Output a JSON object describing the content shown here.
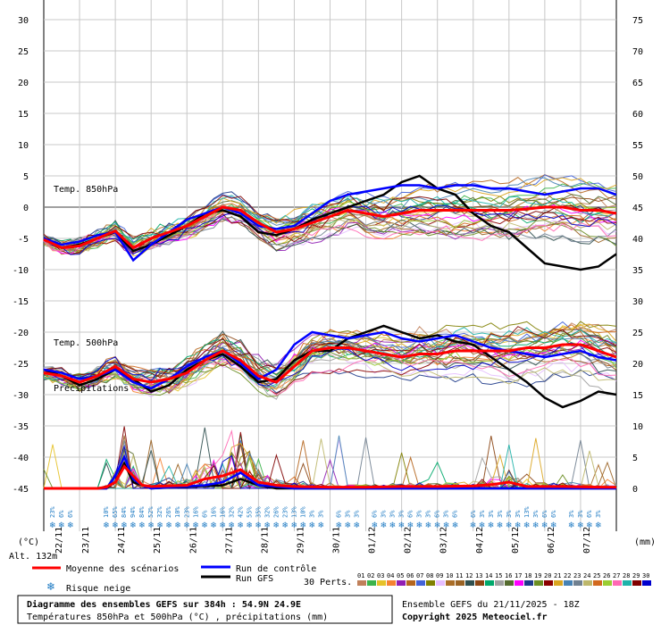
{
  "chart_data": {
    "type": "line",
    "title": "Diagramme des ensembles GEFS sur 384h : 54.9N 24.9E",
    "subtitle": "Températures 850hPa et 500hPa (°C) , précipitations (mm)",
    "run_info": "Ensemble GEFS du 21/11/2025 - 18Z",
    "copyright": "Copyright 2025 Meteociel.fr",
    "altitude": "Alt. 132m",
    "left_unit": "(°C)",
    "right_unit": "(mm)",
    "left_ticks": [
      30,
      25,
      20,
      15,
      10,
      5,
      0,
      -5,
      -10,
      -15,
      -20,
      -25,
      -30,
      -35,
      -40,
      -45
    ],
    "right_ticks": [
      75,
      70,
      65,
      60,
      55,
      50,
      45,
      40,
      35,
      30,
      25,
      20,
      15,
      10,
      5,
      0
    ],
    "ylim_temp": [
      -45,
      30
    ],
    "ylim_precip": [
      0,
      75
    ],
    "x_dates": [
      "22/11",
      "23/11",
      "24/11",
      "25/11",
      "26/11",
      "27/11",
      "28/11",
      "29/11",
      "30/11",
      "01/12",
      "02/12",
      "03/12",
      "04/12",
      "05/12",
      "06/12",
      "07/12"
    ],
    "xlim_hours": [
      0,
      384
    ],
    "annotations": {
      "t850": "Temp. 850hPa",
      "t500": "Temp. 500hPa",
      "precip": "Précipitations"
    },
    "snow_risk_pct": [
      {
        "h": 6,
        "v": "23%"
      },
      {
        "h": 12,
        "v": "6%"
      },
      {
        "h": 18,
        "v": "6%"
      },
      {
        "h": 42,
        "v": "10%"
      },
      {
        "h": 48,
        "v": "65%"
      },
      {
        "h": 54,
        "v": "84%"
      },
      {
        "h": 60,
        "v": "94%"
      },
      {
        "h": 66,
        "v": "84%"
      },
      {
        "h": 72,
        "v": "52%"
      },
      {
        "h": 78,
        "v": "32%"
      },
      {
        "h": 84,
        "v": "26%"
      },
      {
        "h": 90,
        "v": "10%"
      },
      {
        "h": 96,
        "v": "23%"
      },
      {
        "h": 102,
        "v": "16%"
      },
      {
        "h": 108,
        "v": "6%"
      },
      {
        "h": 114,
        "v": "16%"
      },
      {
        "h": 120,
        "v": "16%"
      },
      {
        "h": 126,
        "v": "32%"
      },
      {
        "h": 132,
        "v": "42%"
      },
      {
        "h": 138,
        "v": "55%"
      },
      {
        "h": 144,
        "v": "35%"
      },
      {
        "h": 150,
        "v": "32%"
      },
      {
        "h": 156,
        "v": "26%"
      },
      {
        "h": 162,
        "v": "23%"
      },
      {
        "h": 168,
        "v": "13%"
      },
      {
        "h": 174,
        "v": "10%"
      },
      {
        "h": 180,
        "v": "3%"
      },
      {
        "h": 186,
        "v": "3%"
      },
      {
        "h": 198,
        "v": "6%"
      },
      {
        "h": 204,
        "v": "3%"
      },
      {
        "h": 210,
        "v": "3%"
      },
      {
        "h": 222,
        "v": "6%"
      },
      {
        "h": 228,
        "v": "3%"
      },
      {
        "h": 234,
        "v": "3%"
      },
      {
        "h": 240,
        "v": "3%"
      },
      {
        "h": 246,
        "v": "6%"
      },
      {
        "h": 252,
        "v": "3%"
      },
      {
        "h": 258,
        "v": "3%"
      },
      {
        "h": 264,
        "v": "6%"
      },
      {
        "h": 270,
        "v": "3%"
      },
      {
        "h": 276,
        "v": "6%"
      },
      {
        "h": 288,
        "v": "6%"
      },
      {
        "h": 294,
        "v": "3%"
      },
      {
        "h": 300,
        "v": "3%"
      },
      {
        "h": 306,
        "v": "3%"
      },
      {
        "h": 312,
        "v": "3%"
      },
      {
        "h": 318,
        "v": "3%"
      },
      {
        "h": 324,
        "v": "13%"
      },
      {
        "h": 330,
        "v": "3%"
      },
      {
        "h": 336,
        "v": "6%"
      },
      {
        "h": 342,
        "v": "6%"
      },
      {
        "h": 354,
        "v": "3%"
      },
      {
        "h": 360,
        "v": "3%"
      },
      {
        "h": 366,
        "v": "6%"
      },
      {
        "h": 372,
        "v": "3%"
      }
    ],
    "series": [
      {
        "name": "Moyenne des scénarios",
        "color": "#ff0000",
        "group": "mean",
        "t850_h": [
          0,
          12,
          24,
          36,
          48,
          60,
          72,
          84,
          96,
          108,
          120,
          132,
          144,
          156,
          168,
          180,
          192,
          204,
          216,
          228,
          240,
          252,
          264,
          276,
          288,
          300,
          312,
          324,
          336,
          348,
          360,
          372,
          384
        ],
        "t850": [
          -5.2,
          -6.5,
          -6.2,
          -5.0,
          -3.8,
          -6.5,
          -5.0,
          -4.0,
          -3.0,
          -1.5,
          0.0,
          -0.5,
          -2.5,
          -4.0,
          -3.5,
          -2.5,
          -1.5,
          -0.5,
          -1.0,
          -1.5,
          -1.0,
          -0.5,
          -0.5,
          -0.5,
          -0.5,
          -0.5,
          -0.5,
          -0.3,
          0.0,
          0.0,
          -0.5,
          -0.5,
          -1.0
        ],
        "t500_h": [
          0,
          12,
          24,
          36,
          48,
          60,
          72,
          84,
          96,
          108,
          120,
          132,
          144,
          156,
          168,
          180,
          192,
          204,
          216,
          228,
          240,
          252,
          264,
          276,
          288,
          300,
          312,
          324,
          336,
          348,
          360,
          372,
          384
        ],
        "t500": [
          -26.5,
          -27.0,
          -28.0,
          -27.0,
          -25.5,
          -27.5,
          -28.0,
          -27.5,
          -26.5,
          -24.5,
          -23.0,
          -24.5,
          -27.0,
          -28.0,
          -25.5,
          -23.0,
          -22.5,
          -22.5,
          -23.0,
          -23.5,
          -24.0,
          -23.5,
          -23.5,
          -23.0,
          -23.0,
          -23.0,
          -23.0,
          -22.5,
          -22.5,
          -22.0,
          -22.0,
          -23.0,
          -24.0
        ],
        "precip_h": [
          0,
          36,
          42,
          48,
          54,
          60,
          66,
          72,
          96,
          108,
          120,
          132,
          144,
          156,
          168,
          192,
          216,
          240,
          264,
          288,
          300,
          312,
          324,
          348,
          372,
          384
        ],
        "precip": [
          0.0,
          0.0,
          0.2,
          1.0,
          3.5,
          2.0,
          0.5,
          0.3,
          0.5,
          1.5,
          2.0,
          3.0,
          1.0,
          0.5,
          0.3,
          0.2,
          0.2,
          0.3,
          0.3,
          0.4,
          0.6,
          1.0,
          0.3,
          0.3,
          0.2,
          0.2
        ]
      },
      {
        "name": "Run de contrôle",
        "color": "#0000ff",
        "group": "control",
        "t850_h": [
          0,
          12,
          24,
          36,
          48,
          60,
          72,
          84,
          96,
          108,
          120,
          132,
          144,
          156,
          168,
          180,
          192,
          204,
          216,
          228,
          240,
          252,
          264,
          276,
          288,
          300,
          312,
          324,
          336,
          348,
          360,
          372,
          384
        ],
        "t850": [
          -5.0,
          -6.0,
          -5.5,
          -4.5,
          -4.0,
          -8.5,
          -6.0,
          -4.0,
          -2.0,
          -1.0,
          0.0,
          -1.0,
          -3.0,
          -3.5,
          -3.0,
          -1.0,
          1.0,
          2.0,
          2.5,
          3.0,
          3.5,
          3.5,
          3.0,
          3.5,
          3.5,
          3.0,
          3.0,
          2.5,
          2.0,
          2.5,
          3.0,
          3.0,
          2.0
        ],
        "t500_h": [
          0,
          12,
          24,
          36,
          48,
          60,
          72,
          84,
          96,
          108,
          120,
          132,
          144,
          156,
          168,
          180,
          192,
          204,
          216,
          228,
          240,
          252,
          264,
          276,
          288,
          300,
          312,
          324,
          336,
          348,
          360,
          372,
          384
        ],
        "t500": [
          -26.0,
          -26.5,
          -27.5,
          -27.0,
          -26.0,
          -28.0,
          -29.0,
          -27.5,
          -25.5,
          -24.0,
          -23.0,
          -25.0,
          -27.5,
          -26.0,
          -22.0,
          -20.0,
          -20.5,
          -21.0,
          -20.5,
          -20.0,
          -21.0,
          -21.5,
          -21.0,
          -20.5,
          -21.5,
          -22.5,
          -23.0,
          -23.5,
          -24.0,
          -23.5,
          -23.0,
          -24.0,
          -24.5
        ],
        "precip_h": [
          0,
          42,
          48,
          54,
          60,
          66,
          72,
          108,
          120,
          132,
          144,
          156,
          168,
          384
        ],
        "precip": [
          0.0,
          0.0,
          2.0,
          5.0,
          1.5,
          0.5,
          0.0,
          0.5,
          1.0,
          2.5,
          0.5,
          0.3,
          0.0,
          0.0
        ]
      },
      {
        "name": "Run GFS",
        "color": "#000000",
        "group": "gfs",
        "t850_h": [
          0,
          12,
          24,
          36,
          48,
          60,
          72,
          84,
          96,
          108,
          120,
          132,
          144,
          156,
          168,
          180,
          192,
          204,
          216,
          228,
          240,
          252,
          264,
          276,
          288,
          300,
          312,
          324,
          336,
          348,
          360,
          372,
          384
        ],
        "t850": [
          -5.0,
          -6.5,
          -6.0,
          -5.0,
          -4.0,
          -7.0,
          -6.0,
          -4.5,
          -3.0,
          -1.0,
          -0.5,
          -1.5,
          -4.0,
          -4.5,
          -3.5,
          -2.0,
          -1.0,
          0.0,
          1.0,
          2.0,
          4.0,
          5.0,
          3.0,
          2.0,
          -1.0,
          -3.0,
          -4.0,
          -6.5,
          -9.0,
          -9.5,
          -10.0,
          -9.5,
          -7.5
        ],
        "t500_h": [
          0,
          12,
          24,
          36,
          48,
          60,
          72,
          84,
          96,
          108,
          120,
          132,
          144,
          156,
          168,
          180,
          192,
          204,
          216,
          228,
          240,
          252,
          264,
          276,
          288,
          300,
          312,
          324,
          336,
          348,
          360,
          372,
          384
        ],
        "t500": [
          -26.0,
          -27.0,
          -28.5,
          -27.5,
          -26.0,
          -27.5,
          -29.5,
          -28.5,
          -26.0,
          -24.5,
          -23.5,
          -25.5,
          -28.0,
          -27.5,
          -24.5,
          -23.0,
          -23.0,
          -21.0,
          -20.0,
          -19.0,
          -20.0,
          -21.0,
          -20.5,
          -21.5,
          -22.0,
          -24.0,
          -26.0,
          -28.0,
          -30.5,
          -32.0,
          -31.0,
          -29.5,
          -30.0
        ],
        "precip_h": [
          0,
          42,
          48,
          54,
          60,
          72,
          120,
          132,
          144,
          156,
          384
        ],
        "precip": [
          0.0,
          0.0,
          1.0,
          4.0,
          1.0,
          0.0,
          0.5,
          1.5,
          0.5,
          0.0,
          0.0
        ]
      }
    ],
    "perturbations_label": "30 Perts.",
    "perturbations": [
      {
        "id": "01",
        "color": "#c0805a"
      },
      {
        "id": "02",
        "color": "#3cb44b"
      },
      {
        "id": "03",
        "color": "#e6c229"
      },
      {
        "id": "04",
        "color": "#f58231"
      },
      {
        "id": "05",
        "color": "#911eb4"
      },
      {
        "id": "06",
        "color": "#b5651d"
      },
      {
        "id": "07",
        "color": "#4363d8"
      },
      {
        "id": "08",
        "color": "#808000"
      },
      {
        "id": "09",
        "color": "#e6beff"
      },
      {
        "id": "10",
        "color": "#aa6e28"
      },
      {
        "id": "11",
        "color": "#9a6324"
      },
      {
        "id": "12",
        "color": "#2f4f4f"
      },
      {
        "id": "13",
        "color": "#8b4513"
      },
      {
        "id": "14",
        "color": "#00a86b"
      },
      {
        "id": "15",
        "color": "#a0a0a0"
      },
      {
        "id": "16",
        "color": "#556b2f"
      },
      {
        "id": "17",
        "color": "#ff00ff"
      },
      {
        "id": "18",
        "color": "#1e3a8a"
      },
      {
        "id": "19",
        "color": "#6b8e23"
      },
      {
        "id": "20",
        "color": "#8b0000"
      },
      {
        "id": "21",
        "color": "#daa520"
      },
      {
        "id": "22",
        "color": "#4682b4"
      },
      {
        "id": "23",
        "color": "#708090"
      },
      {
        "id": "24",
        "color": "#bdb76b"
      },
      {
        "id": "25",
        "color": "#d2691e"
      },
      {
        "id": "26",
        "color": "#9acd32"
      },
      {
        "id": "27",
        "color": "#ff69b4"
      },
      {
        "id": "28",
        "color": "#20b2aa"
      },
      {
        "id": "29",
        "color": "#800000"
      },
      {
        "id": "30",
        "color": "#0000cd"
      }
    ],
    "snow_risk_label": "Risque neige",
    "grid": true,
    "legend_position": "bottom-left"
  }
}
